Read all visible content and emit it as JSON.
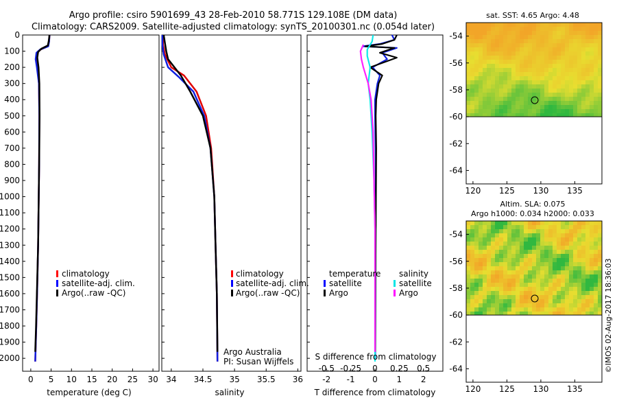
{
  "title": {
    "line1": "Argo profile: csiro 5901699_43 28-Feb-2010 58.771S 129.108E (DM data)",
    "line2": "Climatology: CARS2009. Satellite-adjusted climatology: synTS_20100301.nc (0.054d later)"
  },
  "credit": "©IMOS 02-Aug-2017 18:36:03",
  "colors": {
    "climatology": "#ff0000",
    "satellite": "#0000ff",
    "argo": "#000000",
    "sal_satellite": "#00e5e5",
    "sal_argo": "#ff00ff",
    "map_warm": "#f2a020",
    "map_mid": "#e8e030",
    "map_cool": "#30b840"
  },
  "chart_data": [
    {
      "type": "line",
      "id": "temperature",
      "xlabel": "temperature (deg C)",
      "xlim": [
        -2,
        31.5
      ],
      "xticks": [
        0,
        5,
        10,
        15,
        20,
        25,
        30
      ],
      "ylim": [
        2080,
        0
      ],
      "yticks": [
        0,
        100,
        200,
        300,
        400,
        500,
        600,
        700,
        800,
        900,
        1000,
        1100,
        1200,
        1300,
        1400,
        1500,
        1600,
        1700,
        1800,
        1900,
        2000
      ],
      "legend": [
        "climatology",
        "satellite-adj. clim.",
        "Argo(..raw -QC)"
      ],
      "series": [
        {
          "name": "climatology",
          "color": "red",
          "points": [
            [
              4.6,
              0
            ],
            [
              4.5,
              40
            ],
            [
              4.2,
              70
            ],
            [
              2.4,
              90
            ],
            [
              1.5,
              110
            ],
            [
              1.3,
              150
            ],
            [
              1.7,
              200
            ],
            [
              2.0,
              300
            ],
            [
              2.1,
              500
            ],
            [
              2.05,
              800
            ],
            [
              1.95,
              1000
            ],
            [
              1.8,
              1300
            ],
            [
              1.55,
              1600
            ],
            [
              1.35,
              1800
            ],
            [
              1.1,
              2020
            ]
          ]
        },
        {
          "name": "satellite-adj. clim.",
          "color": "blue",
          "points": [
            [
              4.6,
              0
            ],
            [
              4.5,
              40
            ],
            [
              4.3,
              70
            ],
            [
              2.3,
              90
            ],
            [
              1.4,
              110
            ],
            [
              1.2,
              150
            ],
            [
              1.5,
              200
            ],
            [
              2.0,
              300
            ],
            [
              2.1,
              500
            ],
            [
              2.05,
              800
            ],
            [
              1.95,
              1000
            ],
            [
              1.8,
              1300
            ],
            [
              1.55,
              1600
            ],
            [
              1.35,
              1800
            ],
            [
              1.1,
              2020
            ]
          ]
        },
        {
          "name": "Argo",
          "color": "black",
          "points": [
            [
              4.6,
              0
            ],
            [
              4.4,
              40
            ],
            [
              4.2,
              65
            ],
            [
              2.6,
              85
            ],
            [
              1.8,
              105
            ],
            [
              1.6,
              140
            ],
            [
              1.9,
              200
            ],
            [
              2.1,
              300
            ],
            [
              2.15,
              500
            ],
            [
              2.05,
              800
            ],
            [
              1.95,
              1000
            ],
            [
              1.8,
              1300
            ],
            [
              1.5,
              1600
            ],
            [
              1.3,
              1800
            ],
            [
              1.1,
              1960
            ]
          ]
        }
      ]
    },
    {
      "type": "line",
      "id": "salinity",
      "xlabel": "salinity",
      "xlim": [
        33.85,
        36.05
      ],
      "xticks": [
        34,
        34.5,
        35,
        35.5,
        36
      ],
      "xtick_labels": [
        "34",
        "34.5",
        "35",
        "35.5",
        "36"
      ],
      "ylim": [
        2080,
        0
      ],
      "legend": [
        "climatology",
        "satellite-adj. clim.",
        "Argo(..raw -QC)"
      ],
      "annotation": [
        "Argo Australia",
        "PI: Susan Wijffels"
      ],
      "series": [
        {
          "name": "climatology",
          "color": "red",
          "points": [
            [
              33.87,
              0
            ],
            [
              33.87,
              60
            ],
            [
              33.9,
              120
            ],
            [
              34.0,
              200
            ],
            [
              34.2,
              250
            ],
            [
              34.4,
              350
            ],
            [
              34.55,
              500
            ],
            [
              34.63,
              700
            ],
            [
              34.68,
              1000
            ],
            [
              34.7,
              1300
            ],
            [
              34.72,
              1600
            ],
            [
              34.73,
              2020
            ]
          ]
        },
        {
          "name": "satellite-adj. clim.",
          "color": "blue",
          "points": [
            [
              33.86,
              0
            ],
            [
              33.86,
              60
            ],
            [
              33.88,
              120
            ],
            [
              33.95,
              200
            ],
            [
              34.12,
              260
            ],
            [
              34.35,
              350
            ],
            [
              34.52,
              500
            ],
            [
              34.62,
              700
            ],
            [
              34.68,
              1000
            ],
            [
              34.7,
              1300
            ],
            [
              34.72,
              1600
            ],
            [
              34.73,
              2020
            ]
          ]
        },
        {
          "name": "Argo",
          "color": "black",
          "points": [
            [
              33.88,
              0
            ],
            [
              33.9,
              50
            ],
            [
              33.92,
              100
            ],
            [
              33.95,
              150
            ],
            [
              34.05,
              200
            ],
            [
              34.15,
              250
            ],
            [
              34.3,
              350
            ],
            [
              34.5,
              500
            ],
            [
              34.62,
              700
            ],
            [
              34.68,
              1000
            ],
            [
              34.7,
              1300
            ],
            [
              34.72,
              1600
            ],
            [
              34.73,
              1960
            ]
          ]
        }
      ]
    },
    {
      "type": "line",
      "id": "difference",
      "xlabel": "T difference from climatology",
      "xlim": [
        -2.8,
        2.8
      ],
      "xticks": [
        -2,
        -1,
        0,
        1,
        2
      ],
      "xlabel_top": "S difference from climatology",
      "xticks_top": [
        -0.5,
        -0.25,
        0,
        0.25,
        0.5
      ],
      "xtick_labels_top": [
        "-0.5",
        "-0.25",
        "0",
        "0.25",
        "0.5"
      ],
      "ylim": [
        2080,
        0
      ],
      "legend_headers": [
        "temperature",
        "salinity"
      ],
      "legend_temperature": [
        "satellite",
        "Argo"
      ],
      "legend_salinity": [
        "satellite",
        "Argo"
      ],
      "series": [
        {
          "name": "T satellite",
          "color": "blue",
          "points": [
            [
              0.7,
              0
            ],
            [
              0.8,
              30
            ],
            [
              0.2,
              55
            ],
            [
              -0.5,
              70
            ],
            [
              0.9,
              80
            ],
            [
              0.3,
              110
            ],
            [
              0.5,
              150
            ],
            [
              -0.1,
              200
            ],
            [
              0.2,
              250
            ],
            [
              0.1,
              300
            ],
            [
              0.0,
              400
            ],
            [
              0.0,
              500
            ],
            [
              0.02,
              700
            ],
            [
              0.03,
              1000
            ],
            [
              0.02,
              1500
            ],
            [
              0.01,
              2000
            ]
          ]
        },
        {
          "name": "T Argo",
          "color": "black",
          "points": [
            [
              0.9,
              0
            ],
            [
              0.8,
              30
            ],
            [
              0.3,
              55
            ],
            [
              -0.4,
              70
            ],
            [
              0.8,
              80
            ],
            [
              0.2,
              110
            ],
            [
              0.9,
              140
            ],
            [
              -0.2,
              200
            ],
            [
              0.3,
              250
            ],
            [
              0.15,
              300
            ],
            [
              0.05,
              400
            ],
            [
              0.03,
              500
            ],
            [
              0.05,
              700
            ],
            [
              0.04,
              1000
            ],
            [
              0.02,
              1500
            ],
            [
              0.01,
              1960
            ]
          ]
        },
        {
          "name": "S satellite",
          "color": "cyan",
          "points": [
            [
              -0.02,
              0
            ],
            [
              -0.03,
              40
            ],
            [
              -0.08,
              90
            ],
            [
              -0.08,
              130
            ],
            [
              -0.05,
              200
            ],
            [
              -0.07,
              300
            ],
            [
              -0.05,
              400
            ],
            [
              -0.03,
              600
            ],
            [
              -0.01,
              900
            ],
            [
              0.0,
              1200
            ],
            [
              0.0,
              1600
            ],
            [
              0.0,
              2020
            ]
          ]
        },
        {
          "name": "S Argo",
          "color": "magenta",
          "points": [
            [
              -0.12,
              60
            ],
            [
              -0.15,
              100
            ],
            [
              -0.14,
              150
            ],
            [
              -0.12,
              200
            ],
            [
              -0.07,
              300
            ],
            [
              -0.04,
              400
            ],
            [
              -0.02,
              600
            ],
            [
              -0.01,
              900
            ],
            [
              0.0,
              1200
            ],
            [
              0.0,
              1600
            ],
            [
              0.0,
              1960
            ]
          ]
        }
      ]
    },
    {
      "type": "heatmap",
      "id": "sst-map",
      "title": "sat. SST: 4.65 Argo: 4.48",
      "xlim": [
        119,
        139
      ],
      "ylim": [
        -65,
        -53
      ],
      "xticks": [
        120,
        125,
        130,
        135
      ],
      "yticks": [
        -54,
        -56,
        -58,
        -60,
        -62,
        -64
      ],
      "data_south_limit": -60,
      "marker": {
        "lon": 129.1,
        "lat": -58.77
      },
      "palette": "sst"
    },
    {
      "type": "heatmap",
      "id": "sla-map",
      "title": [
        "Altim. SLA: 0.075",
        "Argo h1000: 0.034 h2000: 0.033"
      ],
      "xlim": [
        119,
        139
      ],
      "ylim": [
        -65,
        -53
      ],
      "xticks": [
        120,
        125,
        130,
        135
      ],
      "yticks": [
        -54,
        -56,
        -58,
        -60,
        -62,
        -64
      ],
      "data_south_limit": -60,
      "marker": {
        "lon": 129.1,
        "lat": -58.77
      },
      "palette": "sla"
    }
  ]
}
